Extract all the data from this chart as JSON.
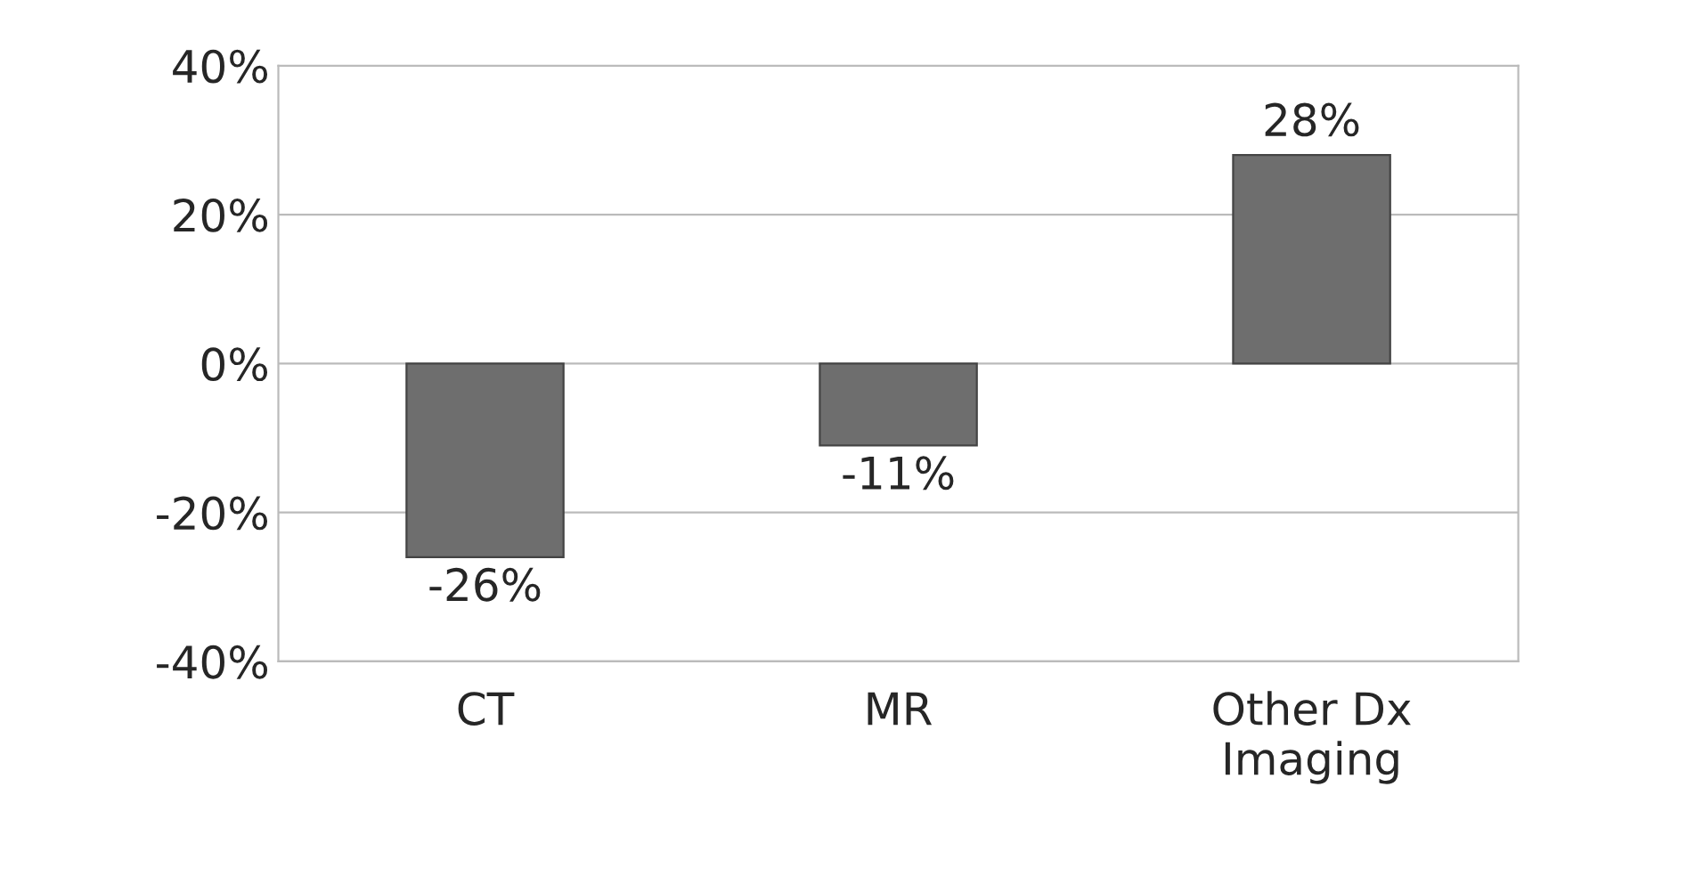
{
  "chart_data": {
    "type": "bar",
    "categories": [
      "CT",
      "MR",
      "Other Dx\nImaging"
    ],
    "values": [
      -26,
      -11,
      28
    ],
    "value_labels": [
      "-26%",
      "-11%",
      "28%"
    ],
    "color": "#6e6e6e",
    "ylim": [
      -40,
      40
    ],
    "yticks": [
      {
        "value": -40,
        "label": "-40%"
      },
      {
        "value": -20,
        "label": "-20%"
      },
      {
        "value": 0,
        "label": "0%"
      },
      {
        "value": 20,
        "label": "20%"
      },
      {
        "value": 40,
        "label": "40%"
      }
    ],
    "grid": "y"
  }
}
